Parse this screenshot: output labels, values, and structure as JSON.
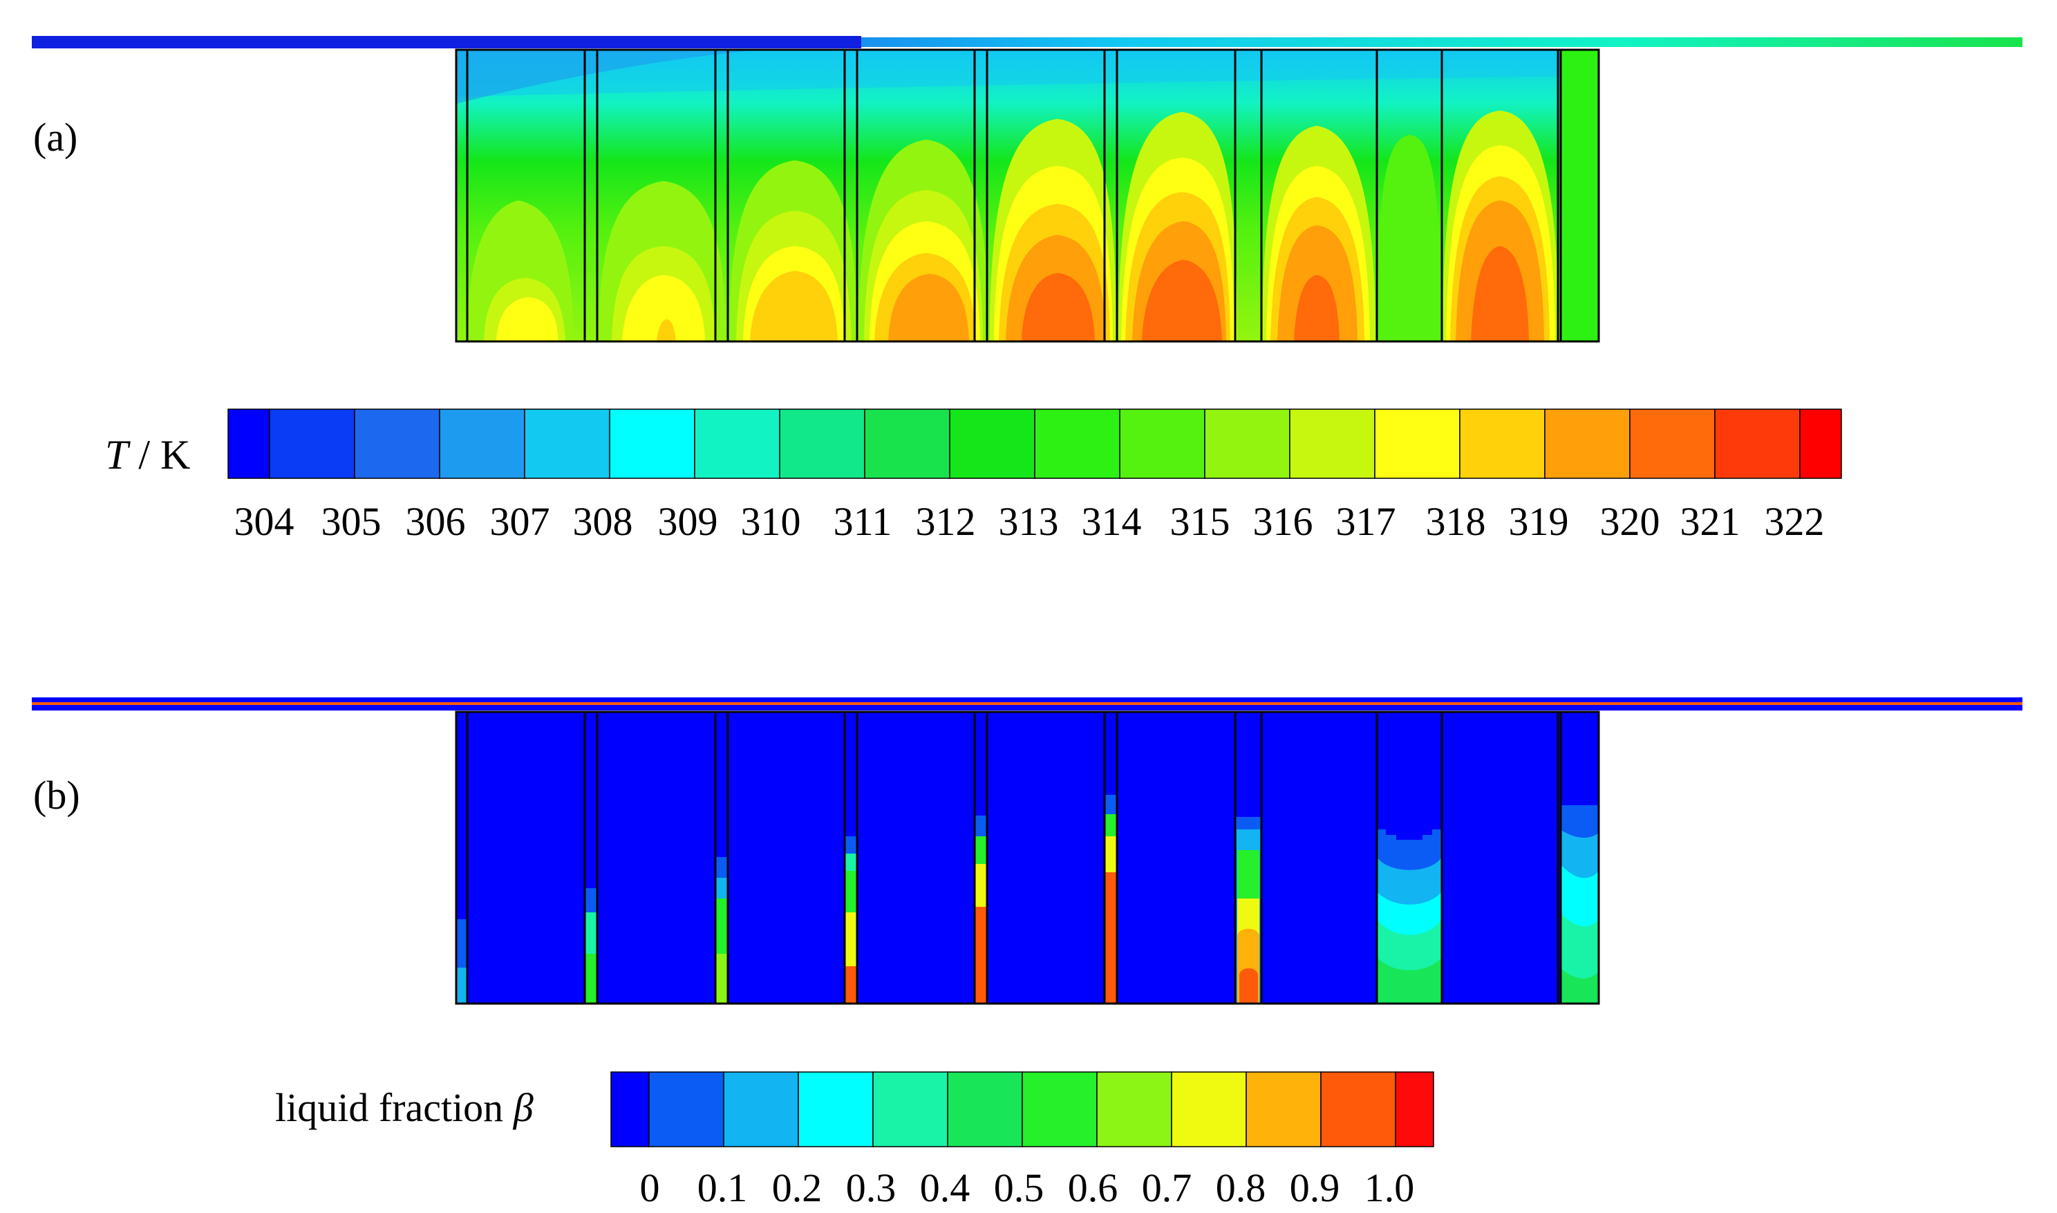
{
  "panels": {
    "a": {
      "label": "(a)"
    },
    "b": {
      "label": "(b)"
    }
  },
  "temperature_legend": {
    "symbol": "T",
    "unit": " / K",
    "ticks": [
      "304",
      "305",
      "306",
      "307",
      "308",
      "309",
      "310",
      "311",
      "312",
      "313",
      "314",
      "315",
      "316",
      "317",
      "318",
      "319",
      "320",
      "321",
      "322"
    ],
    "colors": [
      "#0000ff",
      "#0a3cf5",
      "#1c69f0",
      "#1d9bee",
      "#12c9f2",
      "#00ffff",
      "#12f3c4",
      "#10e889",
      "#19e34c",
      "#14e61a",
      "#2df112",
      "#55f10f",
      "#93f50f",
      "#c8f70f",
      "#ffff14",
      "#ffd10a",
      "#ff9f0a",
      "#ff6a0a",
      "#ff3a0a",
      "#ff0000"
    ]
  },
  "liquid_fraction_legend": {
    "label": "liquid fraction ",
    "symbol": "β",
    "ticks": [
      "0",
      "0.1",
      "0.2",
      "0.3",
      "0.4",
      "0.5",
      "0.6",
      "0.7",
      "0.8",
      "0.9",
      "1.0"
    ],
    "colors": [
      "#0000ff",
      "#0a5cf5",
      "#12b4f2",
      "#00ffff",
      "#19f3a8",
      "#18e658",
      "#25f02a",
      "#8cf515",
      "#f0fa10",
      "#ffb20a",
      "#ff5a0a",
      "#ff0a0a"
    ]
  }
}
